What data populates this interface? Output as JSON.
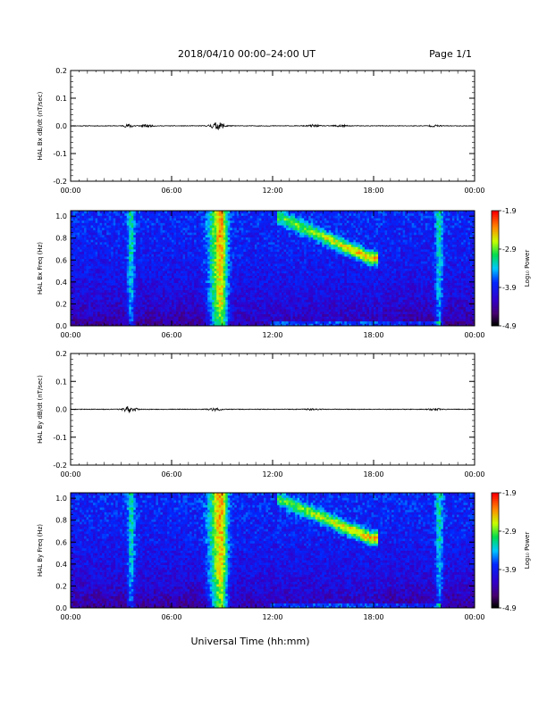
{
  "header": {
    "title": "2018/04/10   00:00–24:00 UT",
    "page": "Page 1/1"
  },
  "xaxis": {
    "label": "Universal Time (hh:mm)",
    "ticks": [
      "00:00",
      "06:00",
      "12:00",
      "18:00",
      "00:00"
    ],
    "range_hours": [
      0,
      24
    ]
  },
  "chart_data": [
    {
      "type": "line",
      "ylabel": "HAL Bx dB/dt (nT/sec)",
      "ylim": [
        -0.2,
        0.2
      ],
      "yticks": [
        {
          "v": 0.2,
          "t": "0.2"
        },
        {
          "v": 0.1,
          "t": "0.1"
        },
        {
          "v": 0.0,
          "t": "0.0"
        },
        {
          "v": -0.1,
          "t": "-0.1"
        },
        {
          "v": -0.2,
          "t": "-0.2"
        }
      ],
      "baseline": 0.0,
      "activity": [
        {
          "t": 3.5,
          "amp": 0.006
        },
        {
          "t": 4.5,
          "amp": 0.004
        },
        {
          "t": 8.6,
          "amp": 0.01
        },
        {
          "t": 9.0,
          "amp": 0.006
        },
        {
          "t": 14.4,
          "amp": 0.004
        },
        {
          "t": 16.0,
          "amp": 0.004
        },
        {
          "t": 21.6,
          "amp": 0.003
        }
      ]
    },
    {
      "type": "heatmap",
      "ylabel": "HAL Bx Freq (Hz)",
      "ylim": [
        0,
        1.05
      ],
      "yticks": [
        {
          "v": 0.0,
          "t": "0.0"
        },
        {
          "v": 0.2,
          "t": "0.2"
        },
        {
          "v": 0.4,
          "t": "0.4"
        },
        {
          "v": 0.6,
          "t": "0.6"
        },
        {
          "v": 0.8,
          "t": "0.8"
        },
        {
          "v": 1.0,
          "t": "1.0"
        }
      ],
      "colorbar": {
        "label": "Log₁₀ Power",
        "range": [
          -4.9,
          -1.9
        ],
        "ticks": [
          "-1.9",
          "-2.9",
          "-3.9",
          "-4.9"
        ]
      },
      "features": {
        "broadband_events_hours": [
          3.6,
          8.7,
          9.0,
          21.9
        ],
        "pc1_band_start": {
          "t": 12.3,
          "f": 1.0
        },
        "pc1_band_end": {
          "t": 17.8,
          "f": 0.62
        }
      }
    },
    {
      "type": "line",
      "ylabel": "HAL By dB/dt (nT/sec)",
      "ylim": [
        -0.2,
        0.2
      ],
      "yticks": [
        {
          "v": 0.2,
          "t": "0.2"
        },
        {
          "v": 0.1,
          "t": "0.1"
        },
        {
          "v": 0.0,
          "t": "0.0"
        },
        {
          "v": -0.1,
          "t": "-0.1"
        },
        {
          "v": -0.2,
          "t": "-0.2"
        }
      ],
      "baseline": 0.0,
      "activity": [
        {
          "t": 3.5,
          "amp": 0.012
        },
        {
          "t": 8.6,
          "amp": 0.006
        },
        {
          "t": 14.4,
          "amp": 0.003
        },
        {
          "t": 21.6,
          "amp": 0.003
        }
      ]
    },
    {
      "type": "heatmap",
      "ylabel": "HAL By Freq (Hz)",
      "ylim": [
        0,
        1.05
      ],
      "yticks": [
        {
          "v": 0.0,
          "t": "0.0"
        },
        {
          "v": 0.2,
          "t": "0.2"
        },
        {
          "v": 0.4,
          "t": "0.4"
        },
        {
          "v": 0.6,
          "t": "0.6"
        },
        {
          "v": 0.8,
          "t": "0.8"
        },
        {
          "v": 1.0,
          "t": "1.0"
        }
      ],
      "colorbar": {
        "label": "Log₁₀ Power",
        "range": [
          -4.9,
          -1.9
        ],
        "ticks": [
          "-1.9",
          "-2.9",
          "-3.9",
          "-4.9"
        ]
      },
      "features": {
        "broadband_events_hours": [
          3.6,
          8.7,
          9.0,
          21.9
        ],
        "pc1_band_start": {
          "t": 12.3,
          "f": 1.0
        },
        "pc1_band_end": {
          "t": 17.8,
          "f": 0.64
        }
      }
    }
  ]
}
